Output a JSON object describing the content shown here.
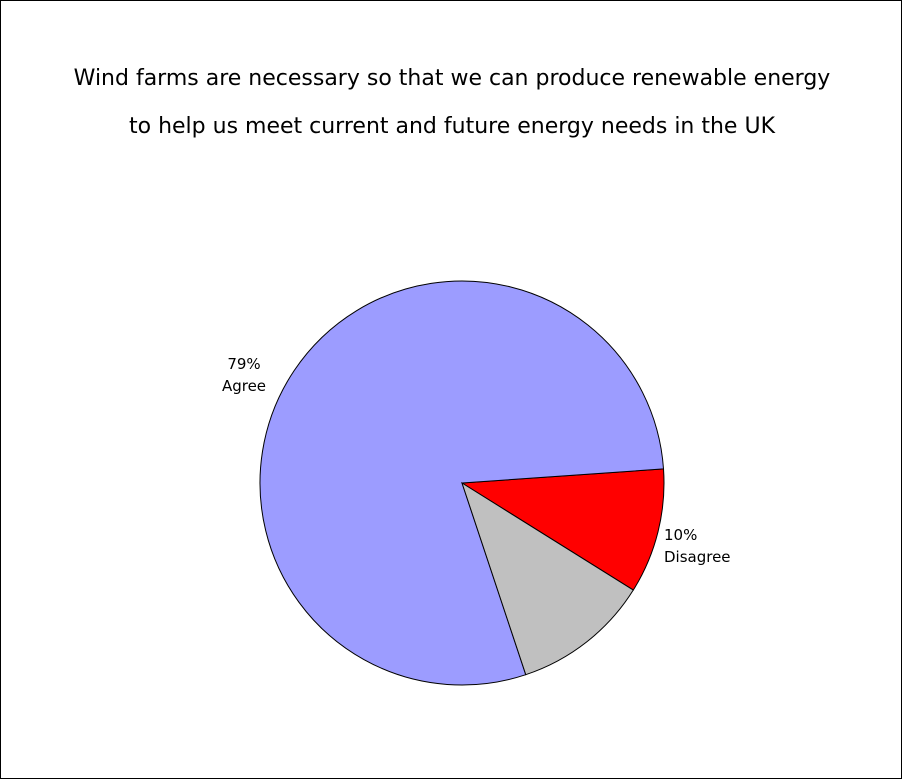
{
  "chart_data": {
    "type": "pie",
    "title_lines": [
      "Wind farms are necessary so that we can produce renewable energy",
      "to help us meet current and future energy needs in the UK"
    ],
    "slices": [
      {
        "value": 79,
        "color": "#9C9CFF",
        "percent_label": "79%",
        "category_label": "Agree"
      },
      {
        "value": 11,
        "color": "#C0C0C0",
        "percent_label": "",
        "category_label": ""
      },
      {
        "value": 10,
        "color": "#FF0000",
        "percent_label": "10%",
        "category_label": "Disagree"
      }
    ],
    "legend": "none",
    "grid": false
  }
}
